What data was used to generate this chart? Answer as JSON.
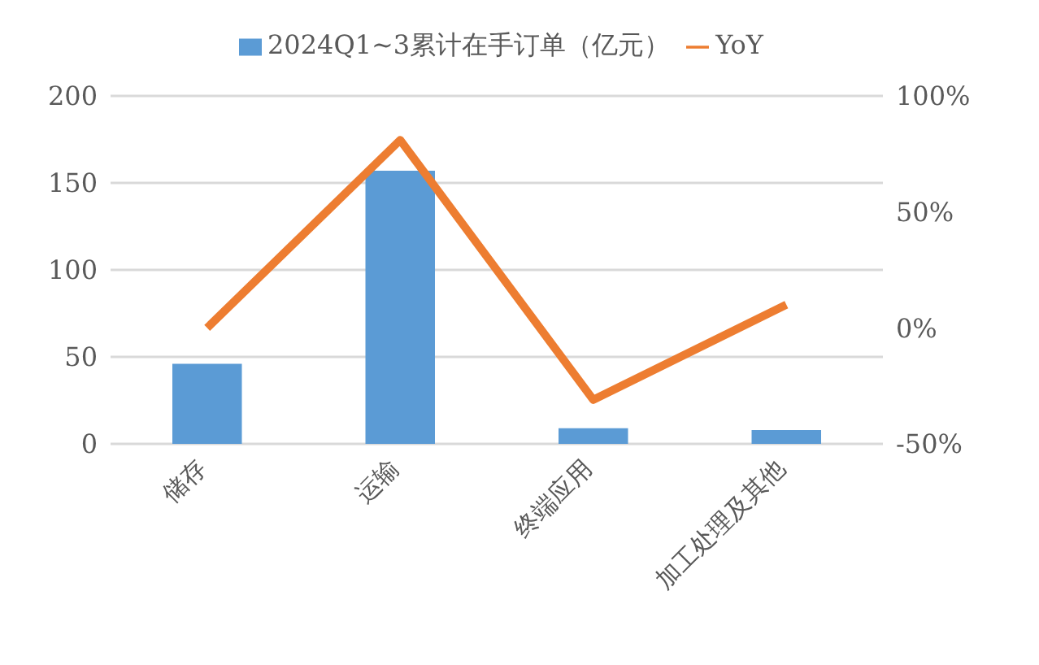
{
  "chart_data": {
    "type": "bar",
    "categories": [
      "储存",
      "运输",
      "终端应用",
      "加工处理及其他"
    ],
    "series": [
      {
        "name": "2024Q1~3累计在手订单（亿元）",
        "color": "#5b9bd5",
        "values": [
          46,
          157,
          9,
          8
        ]
      },
      {
        "name": "YoY",
        "type": "line",
        "axis": "y2",
        "color": "#ed7d31",
        "values": [
          0,
          81,
          -31,
          10
        ]
      }
    ],
    "ylim": [
      0,
      200
    ],
    "yticks": [
      0,
      50,
      100,
      150,
      200
    ],
    "y2lim": [
      -50,
      100
    ],
    "y2ticks": [
      {
        "value": -50,
        "label": "-50%"
      },
      {
        "value": 0,
        "label": "0%"
      },
      {
        "value": 50,
        "label": "50%"
      },
      {
        "value": 100,
        "label": "100%"
      }
    ],
    "grid": "y",
    "legend": "top",
    "marker": "none"
  }
}
